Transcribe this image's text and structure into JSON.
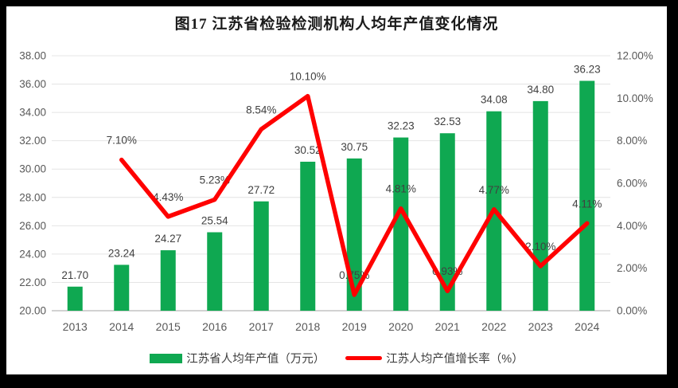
{
  "frame": {
    "background": "#000000",
    "panel_background": "#FFFFFF"
  },
  "chart_data": {
    "type": "combo",
    "title": "图17  江苏省检验检测机构人均年产值变化情况",
    "categories": [
      "2013",
      "2014",
      "2015",
      "2016",
      "2017",
      "2018",
      "2019",
      "2020",
      "2021",
      "2022",
      "2023",
      "2024"
    ],
    "series": [
      {
        "name": "江苏省人均年产值（万元）",
        "type": "bar",
        "axis": "left",
        "color": "#0FA851",
        "values": [
          21.7,
          23.24,
          24.27,
          25.54,
          27.72,
          30.52,
          30.75,
          32.23,
          32.53,
          34.08,
          34.8,
          36.23
        ],
        "value_labels": [
          "21.70",
          "23.24",
          "24.27",
          "25.54",
          "27.72",
          "30.52",
          "30.75",
          "32.23",
          "32.53",
          "34.08",
          "34.80",
          "36.23"
        ]
      },
      {
        "name": "江苏人均产值增长率（%）",
        "type": "line",
        "axis": "right",
        "color": "#FF0000",
        "values": [
          null,
          7.1,
          4.43,
          5.23,
          8.54,
          10.1,
          0.75,
          4.81,
          0.93,
          4.77,
          2.1,
          4.11
        ],
        "value_labels": [
          null,
          "7.10%",
          "4.43%",
          "5.23%",
          "8.54%",
          "10.10%",
          "0.75%",
          "4.81%",
          "0.93%",
          "4.77%",
          "2.10%",
          "4.11%"
        ]
      }
    ],
    "left_axis": {
      "min": 20,
      "max": 38,
      "step": 2,
      "tick_labels_top_to_bottom": [
        "38.00",
        "36.00",
        "34.00",
        "32.00",
        "30.00",
        "28.00",
        "26.00",
        "24.00",
        "22.00",
        "20.00"
      ]
    },
    "right_axis": {
      "min": 0,
      "max": 12,
      "step": 2,
      "tick_labels_top_to_bottom": [
        "12.00%",
        "10.00%",
        "8.00%",
        "6.00%",
        "4.00%",
        "2.00%",
        "0.00%"
      ]
    },
    "grid": true,
    "legend_position": "bottom",
    "colors": {
      "gridline": "#E4E4E4",
      "axis_line": "#D2D2D2",
      "tick_label": "#595959",
      "data_label": "#404040",
      "title": "#1A1A1A"
    }
  }
}
